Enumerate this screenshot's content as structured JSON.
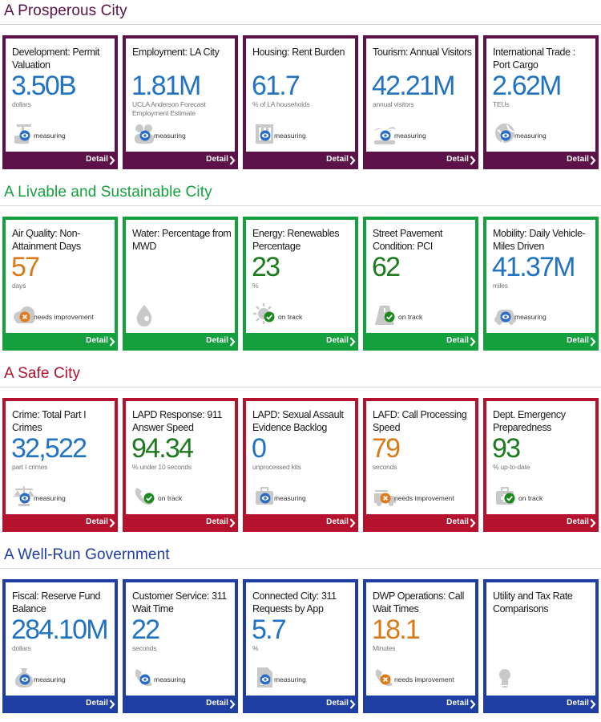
{
  "colors": {
    "prosperous": "#5c1248",
    "livable": "#14a03c",
    "safe": "#b5122e",
    "governance": "#1e3ea3",
    "value_blue": "#2173c2",
    "value_green": "#1e7a1e",
    "value_orange": "#d97a18"
  },
  "detail_label": "Detail",
  "sections": [
    {
      "title": "A Prosperous City",
      "cards": [
        {
          "label": "Development: Permit Valuation",
          "value": "3.50B",
          "unit": "dollars",
          "status": "measuring",
          "icon": "crane-icon"
        },
        {
          "label": "Employment: LA City",
          "value": "1.81M",
          "unit": "UCLA Anderson Forecast Employment Estimate",
          "status": "measuring",
          "icon": "people-icon"
        },
        {
          "label": "Housing: Rent Burden",
          "value": "61.7",
          "unit": "% of LA households",
          "status": "measuring",
          "icon": "building-icon"
        },
        {
          "label": "Tourism: Annual Visitors",
          "value": "42.21M",
          "unit": "annual visitors",
          "status": "measuring",
          "icon": "palm-icon"
        },
        {
          "label": "International Trade : Port Cargo",
          "value": "2.62M",
          "unit": "TEUs",
          "status": "measuring",
          "icon": "globe-icon"
        }
      ]
    },
    {
      "title": "A Livable and Sustainable City",
      "cards": [
        {
          "label": "Air Quality: Non-Attainment Days",
          "value": "57",
          "unit": "days",
          "status": "needs improvement",
          "icon": "cloud-icon"
        },
        {
          "label": "Water: Percentage from MWD",
          "value": "",
          "unit": "",
          "status": "",
          "icon": "water-drop-icon"
        },
        {
          "label": "Energy: Renewables Percentage",
          "value": "23",
          "unit": "%",
          "status": "on track",
          "icon": "sun-icon"
        },
        {
          "label": "Street Pavement Condition: PCI",
          "value": "62",
          "unit": "",
          "status": "on track",
          "icon": "road-icon"
        },
        {
          "label": "Mobility: Daily Vehicle-Miles Driven",
          "value": "41.37M",
          "unit": "miles",
          "status": "measuring",
          "icon": "car-icon"
        }
      ]
    },
    {
      "title": "A Safe City",
      "cards": [
        {
          "label": "Crime: Total Part I Crimes",
          "value": "32,522",
          "unit": "part I crimes",
          "status": "measuring",
          "icon": "scales-icon"
        },
        {
          "label": "LAPD Response: 911 Answer Speed",
          "value": "94.34",
          "unit": "% under 10 seconds",
          "status": "on track",
          "icon": "phone-icon"
        },
        {
          "label": "LAPD: Sexual Assault Evidence Backlog",
          "value": "0",
          "unit": "unprocessed kits",
          "status": "measuring",
          "icon": "kit-icon"
        },
        {
          "label": "LAFD: Call Processing Speed",
          "value": "79",
          "unit": "seconds",
          "status": "needs improvement",
          "icon": "fire-truck-icon"
        },
        {
          "label": "Dept. Emergency Preparedness",
          "value": "93",
          "unit": "% up-to-date",
          "status": "on track",
          "icon": "kit-icon"
        }
      ]
    },
    {
      "title": "A Well-Run Government",
      "cards": [
        {
          "label": "Fiscal: Reserve Fund Balance",
          "value": "284.10M",
          "unit": "dollars",
          "status": "measuring",
          "icon": "money-bag-icon"
        },
        {
          "label": "Customer Service: 311 Wait Time",
          "value": "22",
          "unit": "seconds",
          "status": "measuring",
          "icon": "phone-icon"
        },
        {
          "label": "Connected City: 311 Requests by App",
          "value": "5.7",
          "unit": "%",
          "status": "measuring",
          "icon": "document-icon"
        },
        {
          "label": "DWP Operations: Call Wait Times",
          "value": "18.1",
          "unit": "Minutes",
          "status": "needs improvement",
          "icon": "phone-icon"
        },
        {
          "label": "Utility and Tax Rate Comparisons",
          "value": "",
          "unit": "",
          "status": "",
          "icon": "lightbulb-icon"
        }
      ]
    }
  ]
}
